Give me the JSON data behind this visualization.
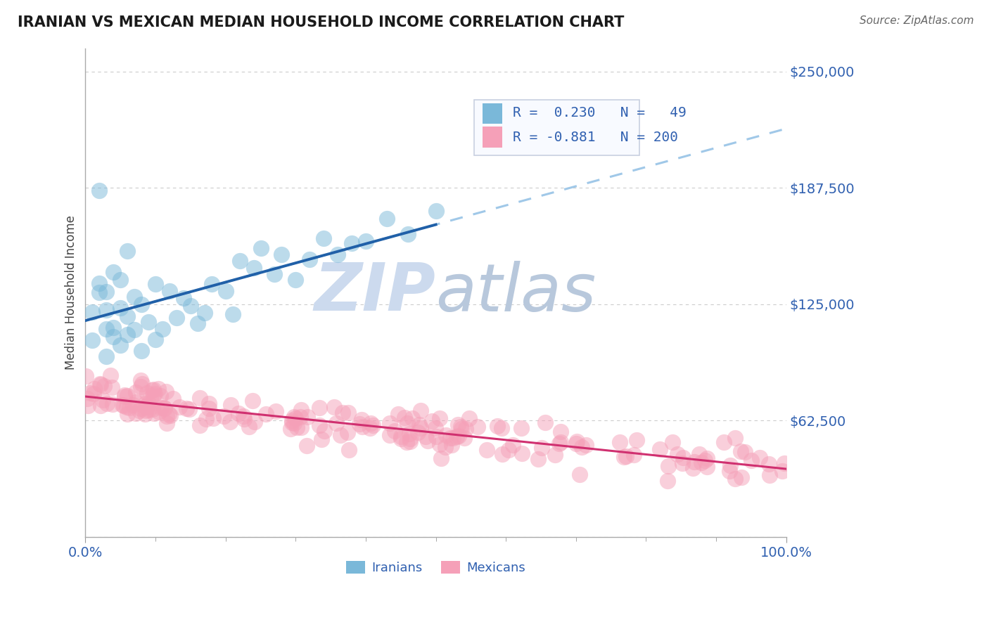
{
  "title": "IRANIAN VS MEXICAN MEDIAN HOUSEHOLD INCOME CORRELATION CHART",
  "source_text": "Source: ZipAtlas.com",
  "ylabel": "Median Household Income",
  "yticks": [
    0,
    62500,
    125000,
    187500,
    250000
  ],
  "ytick_labels": [
    "",
    "$62,500",
    "$125,000",
    "$187,500",
    "$250,000"
  ],
  "xlim": [
    0,
    1
  ],
  "ylim": [
    0,
    262500
  ],
  "iranian_R": 0.23,
  "iranian_N": 49,
  "mexican_R": -0.881,
  "mexican_N": 200,
  "blue_scatter_color": "#7ab8d9",
  "pink_scatter_color": "#f5a0b8",
  "blue_line_color": "#2060a8",
  "pink_line_color": "#d03070",
  "dashed_line_color": "#a0c8e8",
  "watermark_zip_color": "#ccdaee",
  "watermark_atlas_color": "#b8c8dc",
  "title_color": "#1a1a1a",
  "axis_label_color": "#444444",
  "tick_color": "#3060b0",
  "grid_color": "#cccccc",
  "background_color": "#ffffff",
  "legend_border_color": "#c8d0e0",
  "legend_bg_color": "#f8faff",
  "source_color": "#666666",
  "bottom_legend_color": "#3060b0"
}
